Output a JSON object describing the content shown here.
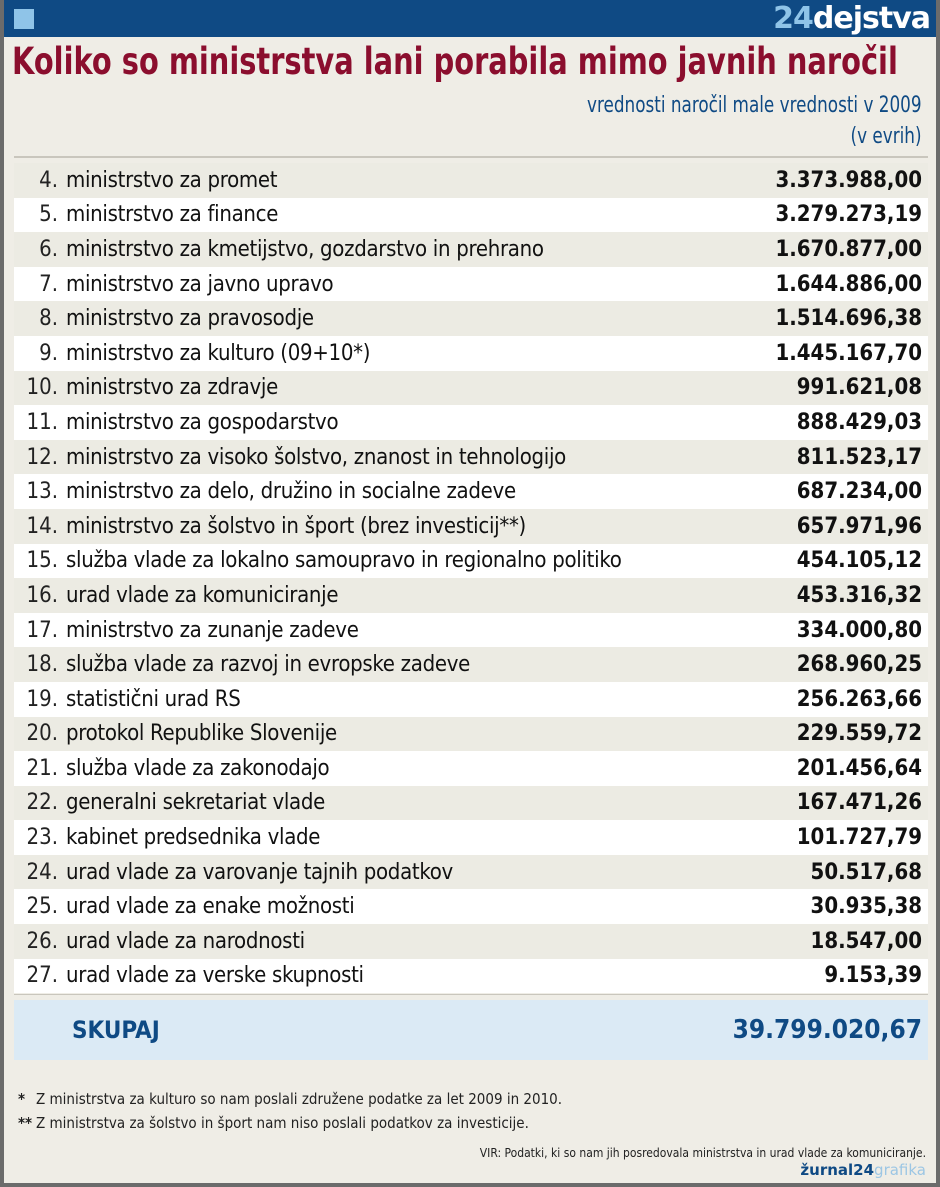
{
  "header": {
    "logo_number": "24",
    "logo_text": "dejstva"
  },
  "title": "Koliko so ministrstva lani porabila mimo javnih naročil",
  "subtitle": "vrednosti naročil male vrednosti v 2009",
  "unit": "(v evrih)",
  "rows": [
    {
      "rank": "4.",
      "name": "ministrstvo za promet",
      "value": "3.373.988,00"
    },
    {
      "rank": "5.",
      "name": "ministrstvo za finance",
      "value": "3.279.273,19"
    },
    {
      "rank": "6.",
      "name": "ministrstvo za kmetijstvo, gozdarstvo in prehrano",
      "value": "1.670.877,00"
    },
    {
      "rank": "7.",
      "name": "ministrstvo za javno upravo",
      "value": "1.644.886,00"
    },
    {
      "rank": "8.",
      "name": "ministrstvo za pravosodje",
      "value": "1.514.696,38"
    },
    {
      "rank": "9.",
      "name": "ministrstvo za kulturo (09+10*)",
      "value": "1.445.167,70"
    },
    {
      "rank": "10.",
      "name": "ministrstvo za zdravje",
      "value": "991.621,08"
    },
    {
      "rank": "11.",
      "name": "ministrstvo za gospodarstvo",
      "value": "888.429,03"
    },
    {
      "rank": "12.",
      "name": "ministrstvo za visoko šolstvo, znanost in tehnologijo",
      "value": "811.523,17"
    },
    {
      "rank": "13.",
      "name": "ministrstvo za delo, družino in socialne zadeve",
      "value": "687.234,00"
    },
    {
      "rank": "14.",
      "name": "ministrstvo za šolstvo in šport (brez investicij**)",
      "value": "657.971,96"
    },
    {
      "rank": "15.",
      "name": "služba vlade za lokalno samoupravo in regionalno politiko",
      "value": "454.105,12"
    },
    {
      "rank": "16.",
      "name": "urad vlade za komuniciranje",
      "value": "453.316,32"
    },
    {
      "rank": "17.",
      "name": "ministrstvo za zunanje zadeve",
      "value": "334.000,80"
    },
    {
      "rank": "18.",
      "name": "služba vlade za razvoj in evropske zadeve",
      "value": "268.960,25"
    },
    {
      "rank": "19.",
      "name": "statistični urad RS",
      "value": "256.263,66"
    },
    {
      "rank": "20.",
      "name": "protokol Republike Slovenije",
      "value": "229.559,72"
    },
    {
      "rank": "21.",
      "name": "služba vlade za zakonodajo",
      "value": "201.456,64"
    },
    {
      "rank": "22.",
      "name": "generalni sekretariat vlade",
      "value": "167.471,26"
    },
    {
      "rank": "23.",
      "name": "kabinet predsednika vlade",
      "value": "101.727,79"
    },
    {
      "rank": "24.",
      "name": "urad vlade za varovanje tajnih podatkov",
      "value": "50.517,68"
    },
    {
      "rank": "25.",
      "name": "urad vlade za enake možnosti",
      "value": "30.935,38"
    },
    {
      "rank": "26.",
      "name": "urad vlade za narodnosti",
      "value": "18.547,00"
    },
    {
      "rank": "27.",
      "name": "urad vlade za verske skupnosti",
      "value": "9.153,39"
    }
  ],
  "total": {
    "label": "SKUPAJ",
    "value": "39.799.020,67"
  },
  "notes": [
    {
      "mark": "*",
      "text": "Z ministrstva za kulturo so nam poslali združene podatke za let 2009 in 2010."
    },
    {
      "mark": "**",
      "text": "Z ministrstva za šolstvo in šport nam niso poslali podatkov za investicije."
    }
  ],
  "source": "VIR: Podatki, ki so nam jih posredovala ministrstva in urad vlade za komuniciranje.",
  "brand": {
    "main": "žurnal24",
    "sub": "grafika"
  },
  "colors": {
    "header": "#0f4a84",
    "title": "#8b0e2e",
    "total_bg": "#dbeaf5",
    "background": "#efede6"
  }
}
